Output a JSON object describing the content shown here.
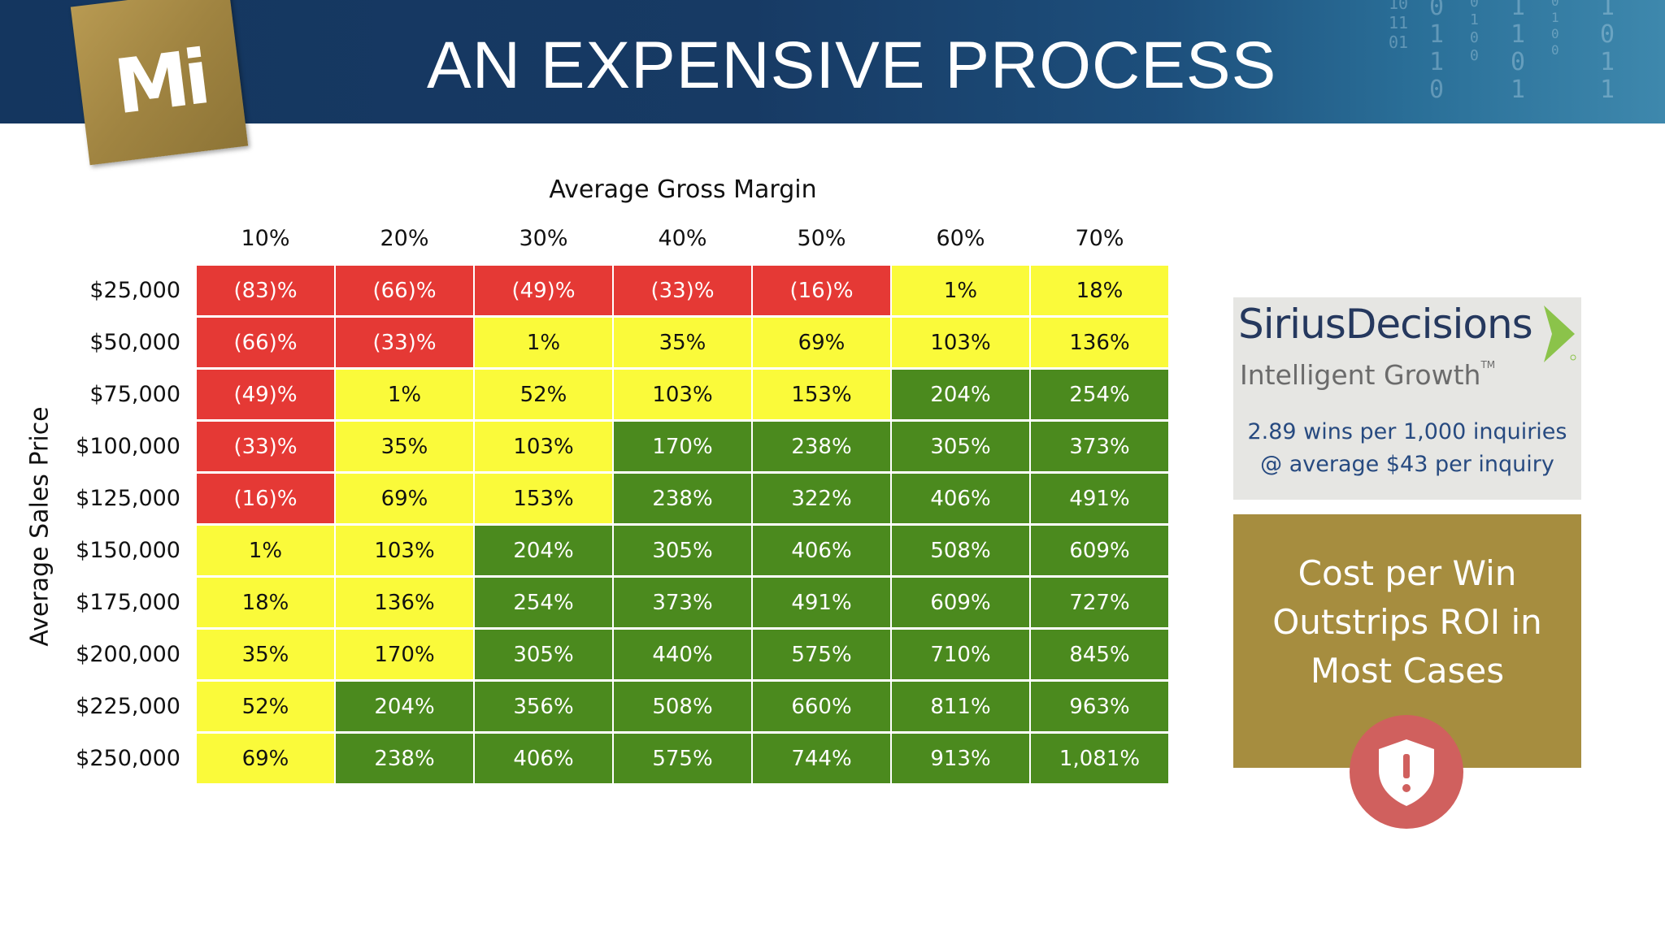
{
  "slide": {
    "title": "AN EXPENSIVE PROCESS",
    "logo_text": "Mi"
  },
  "table": {
    "column_axis_title": "Average Gross Margin",
    "row_axis_title": "Average Sales Price",
    "columns": [
      "10%",
      "20%",
      "30%",
      "40%",
      "50%",
      "60%",
      "70%"
    ],
    "rows": [
      {
        "label": "$25,000",
        "cells": [
          "(83)%",
          "(66)%",
          "(49)%",
          "(33)%",
          "(16)%",
          "1%",
          "18%"
        ],
        "status": [
          "red",
          "red",
          "red",
          "red",
          "red",
          "yellow",
          "yellow"
        ]
      },
      {
        "label": "$50,000",
        "cells": [
          "(66)%",
          "(33)%",
          "1%",
          "35%",
          "69%",
          "103%",
          "136%"
        ],
        "status": [
          "red",
          "red",
          "yellow",
          "yellow",
          "yellow",
          "yellow",
          "yellow"
        ]
      },
      {
        "label": "$75,000",
        "cells": [
          "(49)%",
          "1%",
          "52%",
          "103%",
          "153%",
          "204%",
          "254%"
        ],
        "status": [
          "red",
          "yellow",
          "yellow",
          "yellow",
          "yellow",
          "green",
          "green"
        ]
      },
      {
        "label": "$100,000",
        "cells": [
          "(33)%",
          "35%",
          "103%",
          "170%",
          "238%",
          "305%",
          "373%"
        ],
        "status": [
          "red",
          "yellow",
          "yellow",
          "green",
          "green",
          "green",
          "green"
        ]
      },
      {
        "label": "$125,000",
        "cells": [
          "(16)%",
          "69%",
          "153%",
          "238%",
          "322%",
          "406%",
          "491%"
        ],
        "status": [
          "red",
          "yellow",
          "yellow",
          "green",
          "green",
          "green",
          "green"
        ]
      },
      {
        "label": "$150,000",
        "cells": [
          "1%",
          "103%",
          "204%",
          "305%",
          "406%",
          "508%",
          "609%"
        ],
        "status": [
          "yellow",
          "yellow",
          "green",
          "green",
          "green",
          "green",
          "green"
        ]
      },
      {
        "label": "$175,000",
        "cells": [
          "18%",
          "136%",
          "254%",
          "373%",
          "491%",
          "609%",
          "727%"
        ],
        "status": [
          "yellow",
          "yellow",
          "green",
          "green",
          "green",
          "green",
          "green"
        ]
      },
      {
        "label": "$200,000",
        "cells": [
          "35%",
          "170%",
          "305%",
          "440%",
          "575%",
          "710%",
          "845%"
        ],
        "status": [
          "yellow",
          "yellow",
          "green",
          "green",
          "green",
          "green",
          "green"
        ]
      },
      {
        "label": "$225,000",
        "cells": [
          "52%",
          "204%",
          "356%",
          "508%",
          "660%",
          "811%",
          "963%"
        ],
        "status": [
          "yellow",
          "green",
          "green",
          "green",
          "green",
          "green",
          "green"
        ]
      },
      {
        "label": "$250,000",
        "cells": [
          "69%",
          "238%",
          "406%",
          "575%",
          "744%",
          "913%",
          "1,081%"
        ],
        "status": [
          "yellow",
          "green",
          "green",
          "green",
          "green",
          "green",
          "green"
        ]
      }
    ]
  },
  "sirius_card": {
    "brand": "SiriusDecisions",
    "tagline": "Intelligent Growth",
    "trademark": "TM",
    "stat_line1": "2.89 wins per 1,000 inquiries",
    "stat_line2": "@ average $43 per inquiry"
  },
  "cost_card": {
    "lines": [
      "Cost per Win",
      "Outstrips ROI in",
      "Most Cases"
    ],
    "icon": "shield-exclamation-icon"
  },
  "background_binary": [
    "10\n11\n01",
    "0\n1\n1\n0",
    "0\n1\n0\n0",
    "1\n1\n0\n1",
    "0\n1\n0\n0",
    "1\n0\n1\n1"
  ],
  "colors": {
    "red": "#e53935",
    "yellow": "#fafa3a",
    "green": "#4b8a1e",
    "banner": "#173a64",
    "gold": "#a68d3f",
    "alert": "#d0605e"
  }
}
